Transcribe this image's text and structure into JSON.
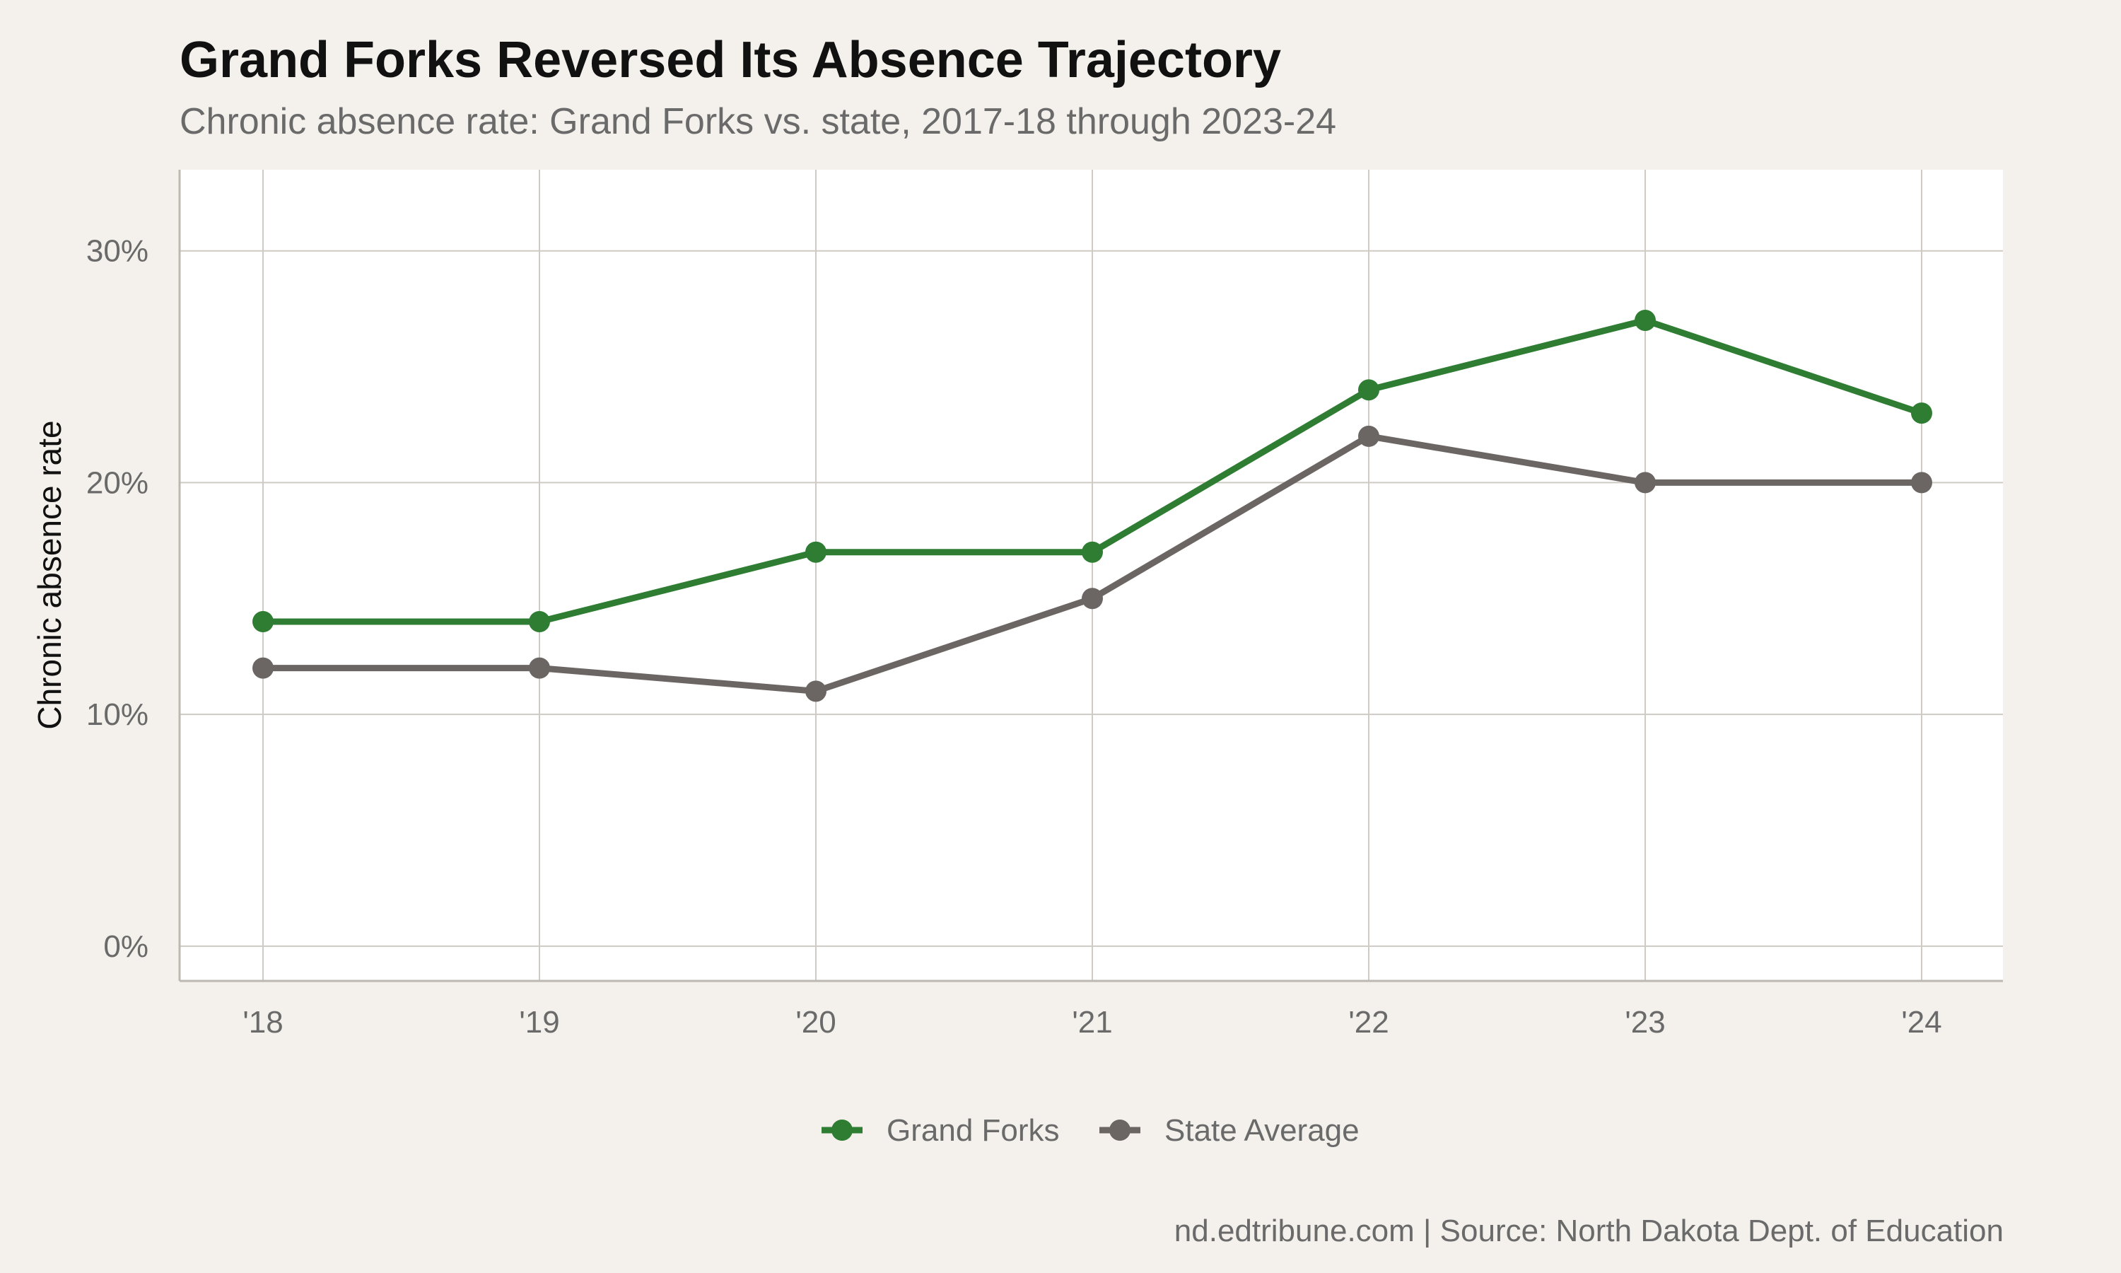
{
  "title": "Grand Forks Reversed Its Absence Trajectory",
  "subtitle": "Chronic absence rate: Grand Forks vs. state, 2017-18 through 2023-24",
  "caption": "nd.edtribune.com | Source: North Dakota Dept. of Education",
  "colors": {
    "background": "#f4f1ec",
    "panel": "#ffffff",
    "grid": "#cfcbc4",
    "grand_forks": "#2e7d32",
    "state": "#6b6663",
    "text_muted": "#6a6a6a"
  },
  "chart_data": {
    "type": "line",
    "categories": [
      "'18",
      "'19",
      "'20",
      "'21",
      "'22",
      "'23",
      "'24"
    ],
    "ylabel": "Chronic absence rate",
    "xlabel": "",
    "ylim": [
      -1.5,
      33.5
    ],
    "yticks": [
      0,
      10,
      20,
      30
    ],
    "ytick_labels": [
      "0%",
      "10%",
      "20%",
      "30%"
    ],
    "grid": true,
    "legend_position": "bottom",
    "series": [
      {
        "name": "Grand Forks",
        "color": "#2e7d32",
        "values": [
          14,
          14,
          17,
          17,
          24,
          27,
          23
        ]
      },
      {
        "name": "State Average",
        "color": "#6b6663",
        "values": [
          12,
          12,
          11,
          15,
          22,
          20,
          20
        ]
      }
    ]
  }
}
